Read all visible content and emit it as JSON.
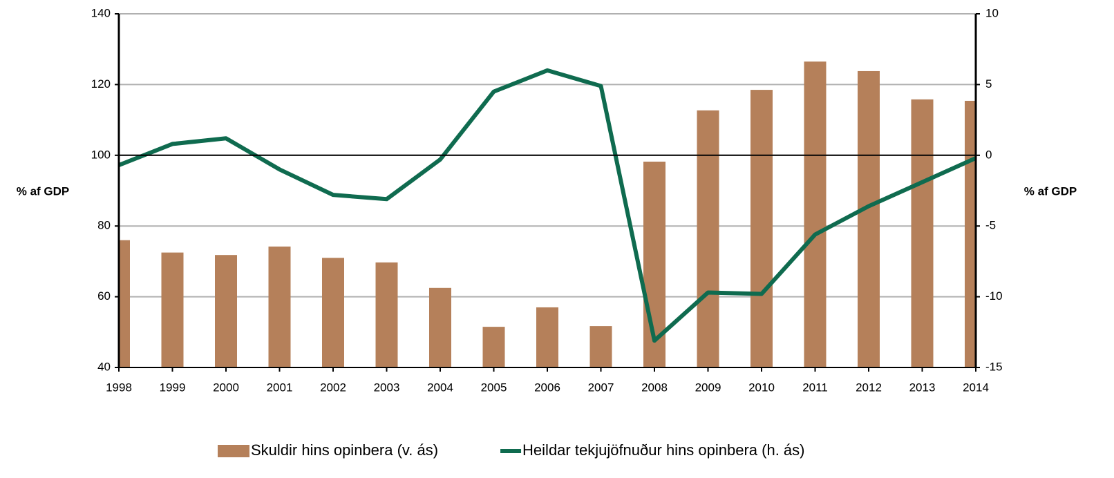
{
  "chart_data": {
    "type": "bar-line",
    "categories": [
      "1998",
      "1999",
      "2000",
      "2001",
      "2002",
      "2003",
      "2004",
      "2005",
      "2006",
      "2007",
      "2008",
      "2009",
      "2010",
      "2011",
      "2012",
      "2013",
      "2014"
    ],
    "series": [
      {
        "name": "Skuldir hins opinbera (v. ás)",
        "type": "bar",
        "color": "#b5805a",
        "axis": "y",
        "values": [
          76,
          72.5,
          71.8,
          74.2,
          71,
          69.7,
          62.5,
          51.5,
          57,
          51.7,
          98.2,
          112.7,
          118.5,
          126.5,
          123.8,
          115.8,
          115.4
        ]
      },
      {
        "name": "Heildar tekjujöfnuður hins opinbera (h. ás)",
        "type": "line",
        "color": "#0f6b4f",
        "axis": "y2",
        "values": [
          -0.7,
          0.8,
          1.2,
          -1.0,
          -2.8,
          -3.1,
          -0.3,
          4.5,
          6.0,
          4.9,
          -13.1,
          -9.7,
          -9.8,
          -5.6,
          -3.6,
          -1.9,
          -0.2
        ]
      }
    ],
    "ylabel": "% af GDP",
    "y2label": "% af GDP",
    "ylim": [
      40,
      140
    ],
    "yticks": [
      40,
      60,
      80,
      100,
      120,
      140
    ],
    "y2lim": [
      -15,
      10
    ],
    "y2ticks": [
      -15,
      -10,
      -5,
      0,
      5,
      10
    ],
    "grid": true,
    "legend": "bottom"
  }
}
